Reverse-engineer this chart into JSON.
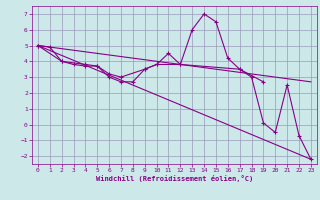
{
  "title": "",
  "xlabel": "Windchill (Refroidissement éolien,°C)",
  "background_color": "#cce8e8",
  "grid_color": "#9999bb",
  "line_color": "#880088",
  "xlim": [
    -0.5,
    23.5
  ],
  "ylim": [
    -2.5,
    7.5
  ],
  "xticks": [
    0,
    1,
    2,
    3,
    4,
    5,
    6,
    7,
    8,
    9,
    10,
    11,
    12,
    13,
    14,
    15,
    16,
    17,
    18,
    19,
    20,
    21,
    22,
    23
  ],
  "yticks": [
    -2,
    -1,
    0,
    1,
    2,
    3,
    4,
    5,
    6,
    7
  ],
  "series1_x": [
    0,
    1,
    2,
    3,
    4,
    5,
    6,
    7,
    8,
    9,
    10,
    11,
    12,
    13,
    14,
    15,
    16,
    17,
    18,
    19,
    20,
    21,
    22,
    23
  ],
  "series1_y": [
    5.0,
    4.9,
    4.0,
    3.8,
    3.7,
    3.7,
    3.0,
    2.7,
    2.7,
    3.5,
    3.8,
    4.5,
    3.8,
    6.0,
    7.0,
    6.5,
    4.2,
    3.5,
    3.0,
    0.1,
    -0.5,
    2.5,
    -0.7,
    -2.2
  ],
  "series2_x": [
    0,
    23
  ],
  "series2_y": [
    5.0,
    -2.2
  ],
  "series3_x": [
    0,
    2,
    4,
    5,
    6,
    7,
    9,
    10,
    12,
    17,
    19
  ],
  "series3_y": [
    5.0,
    4.0,
    3.8,
    3.7,
    3.2,
    3.0,
    3.5,
    3.8,
    3.8,
    3.5,
    2.7
  ],
  "series4_x": [
    0,
    23
  ],
  "series4_y": [
    5.0,
    2.7
  ]
}
